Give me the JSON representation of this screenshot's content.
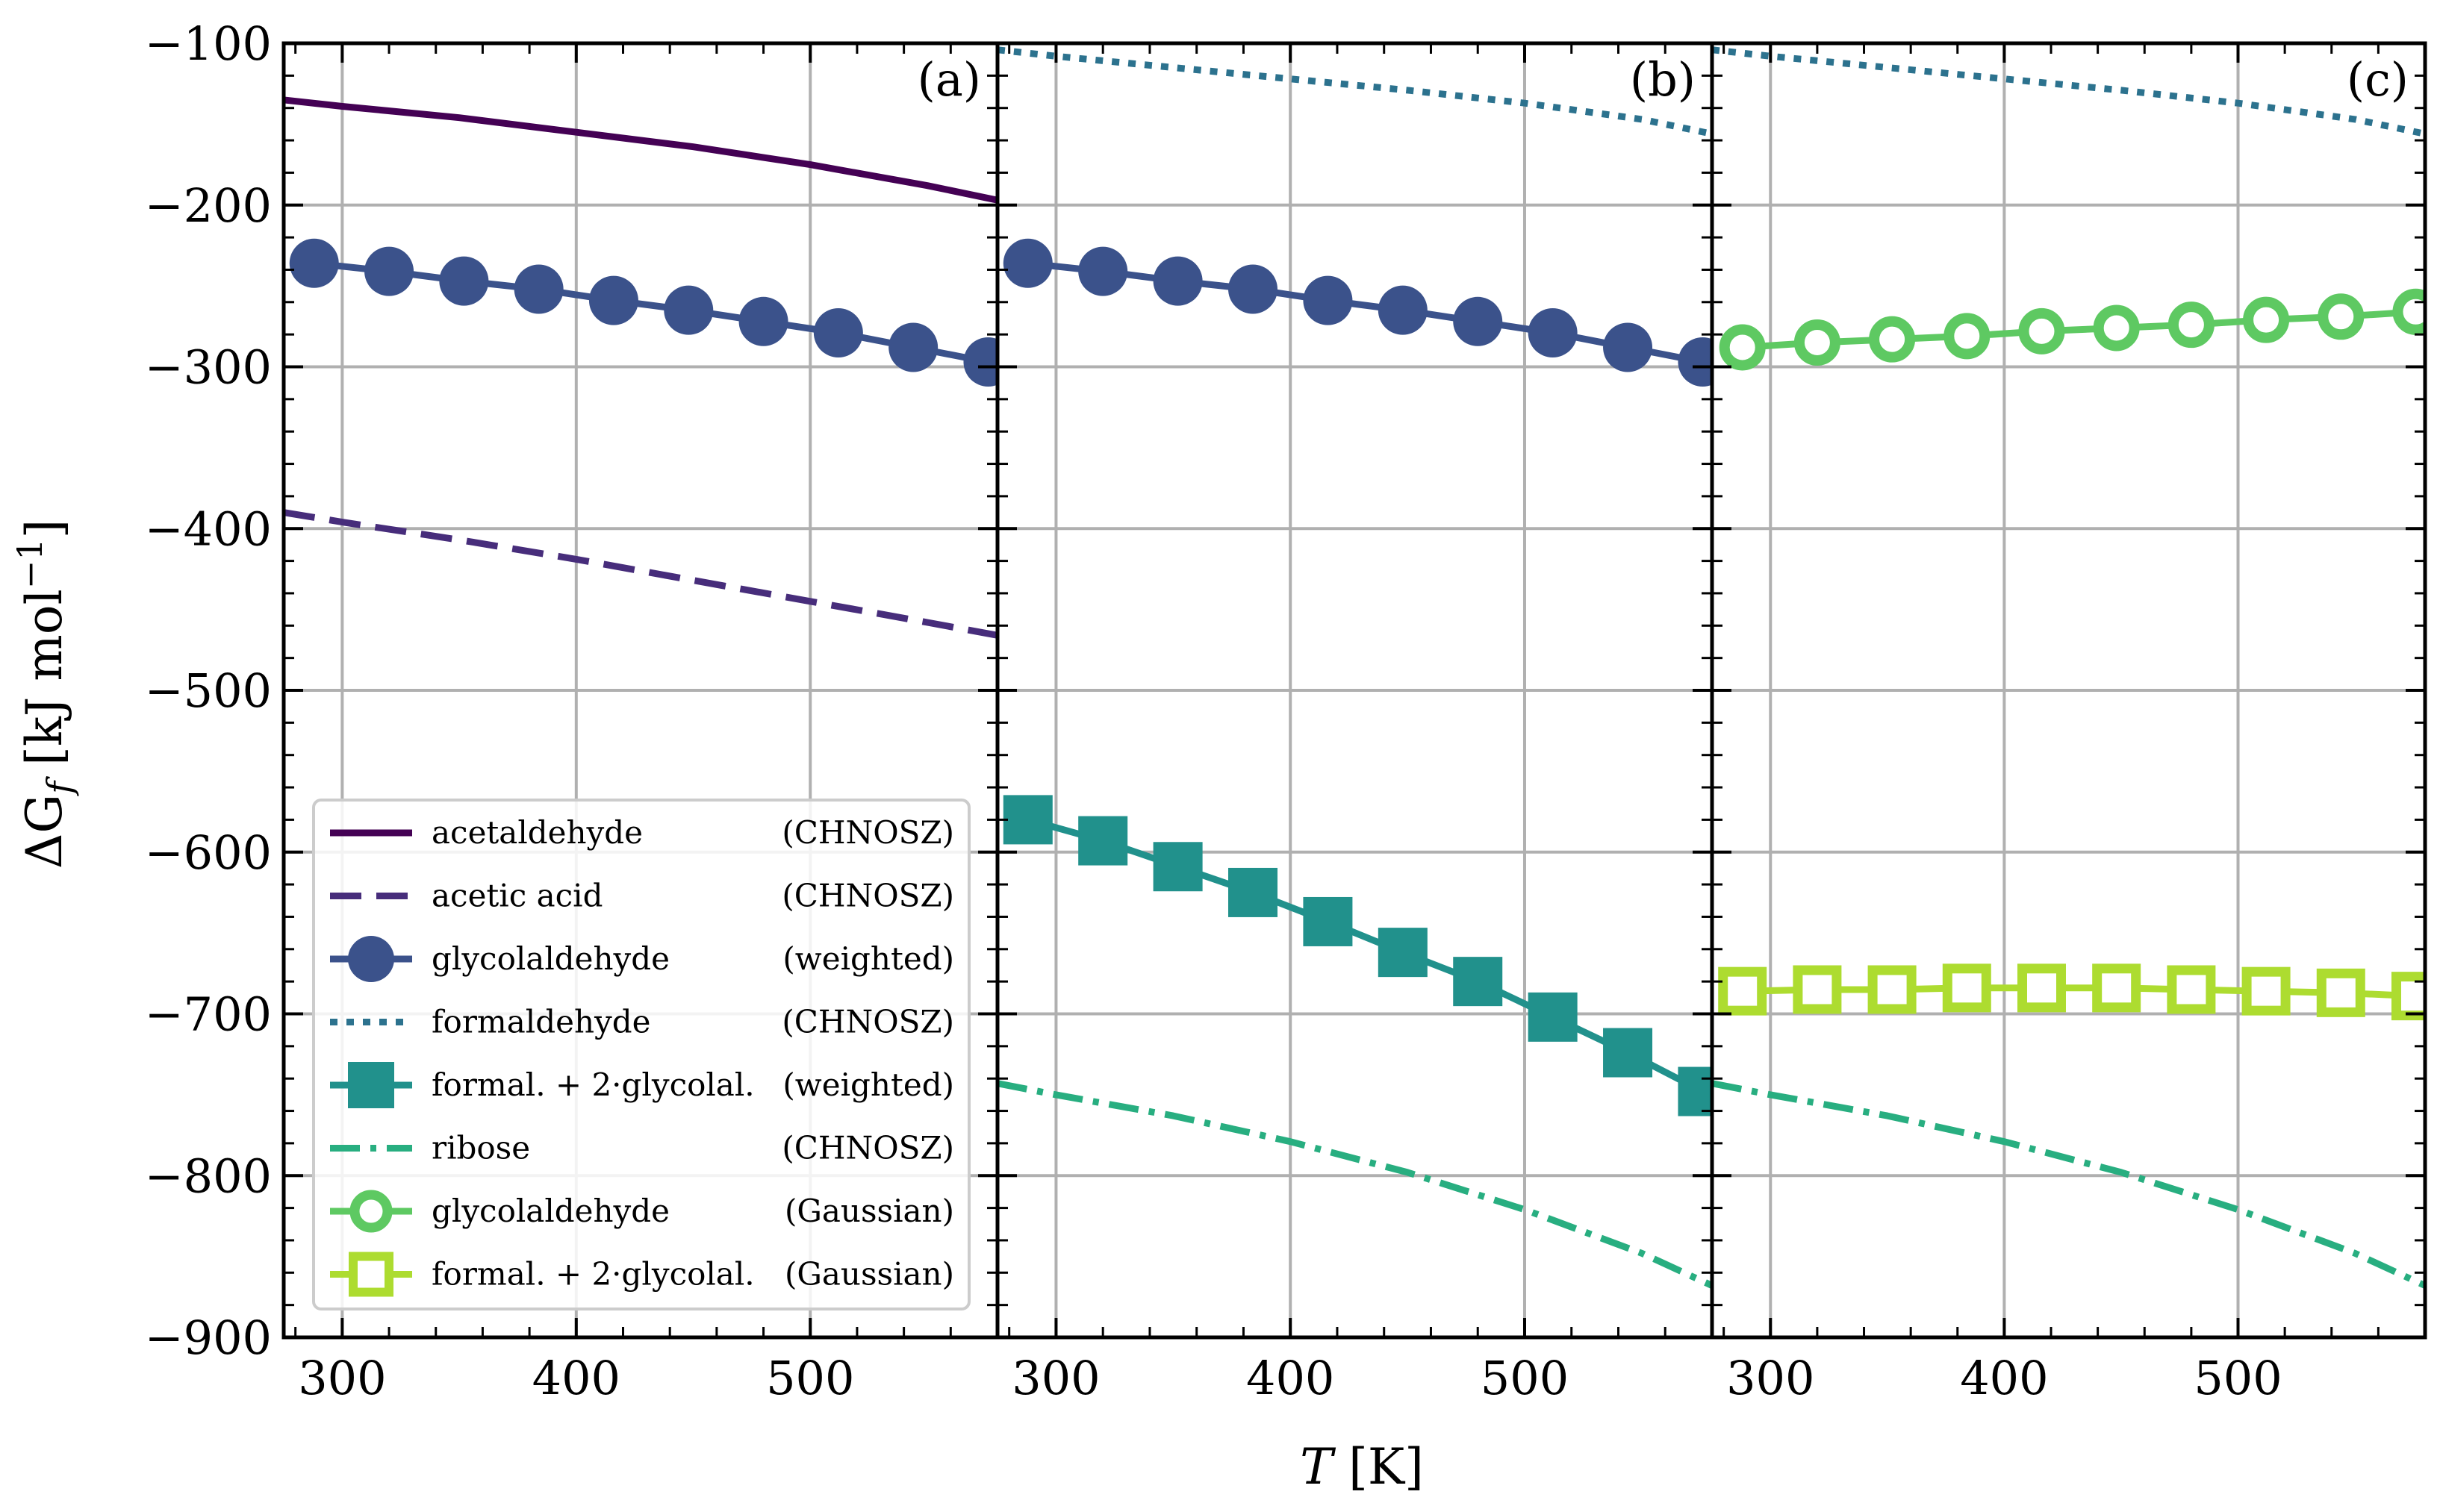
{
  "chart_data": {
    "type": "line",
    "xlabel": "T [K]",
    "ylabel": "ΔG_f [kJ mol^-1]",
    "xlim": [
      275,
      580
    ],
    "ylim": [
      -900,
      -100
    ],
    "xticks": [
      300,
      400,
      500
    ],
    "yticks": [
      -100,
      -200,
      -300,
      -400,
      -500,
      -600,
      -700,
      -800,
      -900
    ],
    "grid": true,
    "legend_position": "lower-left of panel (a)",
    "panels": [
      {
        "tag": "(a)",
        "series": [
          "acetaldehyde",
          "acetic_acid",
          "glycolaldehyde_weighted"
        ]
      },
      {
        "tag": "(b)",
        "series": [
          "glycolaldehyde_weighted",
          "formaldehyde",
          "formal_glycolal_weighted",
          "ribose"
        ]
      },
      {
        "tag": "(c)",
        "series": [
          "formaldehyde",
          "glycolaldehyde_gaussian",
          "formal_glycolal_gaussian",
          "ribose"
        ]
      }
    ],
    "series": {
      "acetaldehyde": {
        "name": "acetaldehyde",
        "method": "(CHNOSZ)",
        "color": "#440154",
        "style": "solid",
        "marker": "none",
        "x": [
          275,
          300,
          350,
          400,
          450,
          500,
          550,
          580
        ],
        "y": [
          -135,
          -139,
          -146,
          -155,
          -164,
          -175,
          -188,
          -197
        ]
      },
      "acetic_acid": {
        "name": "acetic acid",
        "method": "(CHNOSZ)",
        "color": "#472d7b",
        "style": "dashed",
        "marker": "none",
        "x": [
          275,
          300,
          350,
          400,
          450,
          500,
          550,
          580
        ],
        "y": [
          -390,
          -396,
          -407,
          -419,
          -432,
          -445,
          -458,
          -466
        ]
      },
      "glycolaldehyde_weighted": {
        "name": "glycolaldehyde",
        "method": "(weighted)",
        "color": "#3b528b",
        "style": "solid",
        "marker": "circle-filled",
        "x": [
          288,
          320,
          352,
          384,
          416,
          448,
          480,
          512,
          544,
          576
        ],
        "y": [
          -236,
          -241,
          -247,
          -252,
          -259,
          -265,
          -272,
          -279,
          -288,
          -297
        ]
      },
      "formaldehyde": {
        "name": "formaldehyde",
        "method": "(CHNOSZ)",
        "color": "#2c728e",
        "style": "dotted",
        "marker": "none",
        "x": [
          275,
          300,
          350,
          400,
          450,
          500,
          550,
          580
        ],
        "y": [
          -104,
          -108,
          -115,
          -122,
          -129,
          -137,
          -147,
          -156
        ]
      },
      "formal_glycolal_weighted": {
        "name": "formal. + 2·glycolal.",
        "method": "(weighted)",
        "color": "#21918c",
        "style": "solid",
        "marker": "square-filled",
        "x": [
          288,
          320,
          352,
          384,
          416,
          448,
          480,
          512,
          544,
          576
        ],
        "y": [
          -580,
          -593,
          -609,
          -625,
          -643,
          -662,
          -680,
          -702,
          -724,
          -748
        ]
      },
      "ribose": {
        "name": "ribose",
        "method": "(CHNOSZ)",
        "color": "#28ae80",
        "style": "dashdot",
        "marker": "none",
        "x": [
          275,
          300,
          350,
          400,
          450,
          500,
          550,
          580
        ],
        "y": [
          -743,
          -750,
          -763,
          -779,
          -798,
          -821,
          -848,
          -868
        ]
      },
      "glycolaldehyde_gaussian": {
        "name": "glycolaldehyde",
        "method": "(Gaussian)",
        "color": "#5ec962",
        "style": "solid",
        "marker": "circle-open",
        "x": [
          288,
          320,
          352,
          384,
          416,
          448,
          480,
          512,
          544,
          576
        ],
        "y": [
          -288,
          -285,
          -283,
          -281,
          -278,
          -276,
          -274,
          -271,
          -269,
          -266
        ]
      },
      "formal_glycolal_gaussian": {
        "name": "formal. + 2·glycolal.",
        "method": "(Gaussian)",
        "color": "#addc30",
        "style": "solid",
        "marker": "square-open",
        "x": [
          288,
          320,
          352,
          384,
          416,
          448,
          480,
          512,
          544,
          576
        ],
        "y": [
          -686,
          -685,
          -685,
          -684,
          -684,
          -684,
          -685,
          -686,
          -687,
          -689
        ]
      }
    },
    "legend_order": [
      "acetaldehyde",
      "acetic_acid",
      "glycolaldehyde_weighted",
      "formaldehyde",
      "formal_glycolal_weighted",
      "ribose",
      "glycolaldehyde_gaussian",
      "formal_glycolal_gaussian"
    ]
  }
}
